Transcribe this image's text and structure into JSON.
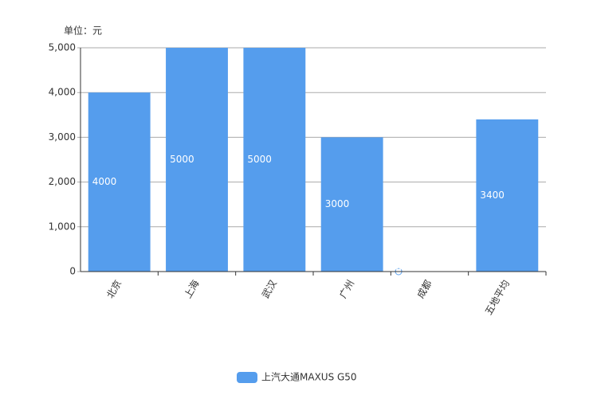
{
  "chart_data": {
    "type": "bar",
    "unit_label": "单位：元",
    "categories": [
      "北京",
      "上海",
      "武汉",
      "广州",
      "成都",
      "五地平均"
    ],
    "series": [
      {
        "name": "上汽大通MAXUS G50",
        "color": "#559ded",
        "values": [
          4000,
          5000,
          5000,
          3000,
          0,
          3400
        ]
      }
    ],
    "ylim": [
      0,
      5000
    ],
    "yticks": [
      0,
      {
        "value": 1000,
        "label": "1,000"
      },
      {
        "value": 2000,
        "label": "2,000"
      },
      {
        "value": 3000,
        "label": "3,000"
      },
      {
        "value": 4000,
        "label": "4,000"
      },
      {
        "value": 5000,
        "label": "5,000"
      }
    ],
    "grid": true,
    "legend": "bottom"
  }
}
